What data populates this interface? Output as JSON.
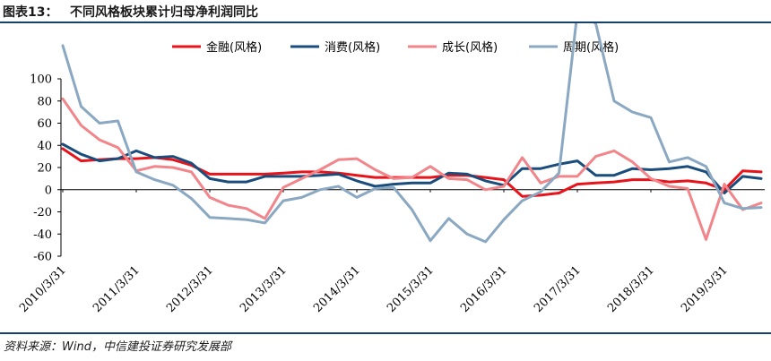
{
  "figure": {
    "number": "图表13：",
    "title": "不同风格板块累计归母净利润同比",
    "source": "资料来源：Wind，中信建投证券研究发展部"
  },
  "chart_data": {
    "type": "line",
    "title": "不同风格板块累计归母净利润同比",
    "ylabel": "",
    "xlabel": "",
    "ylim": [
      -60,
      100
    ],
    "yticks": [
      -60,
      -40,
      -20,
      0,
      20,
      40,
      60,
      80,
      100
    ],
    "grid": false,
    "legend_position": "top",
    "x": [
      "2010/3/31",
      "2010/6/30",
      "2010/9/30",
      "2010/12/31",
      "2011/3/31",
      "2011/6/30",
      "2011/9/30",
      "2011/12/31",
      "2012/3/31",
      "2012/6/30",
      "2012/9/30",
      "2012/12/31",
      "2013/3/31",
      "2013/6/30",
      "2013/9/30",
      "2013/12/31",
      "2014/3/31",
      "2014/6/30",
      "2014/9/30",
      "2014/12/31",
      "2015/3/31",
      "2015/6/30",
      "2015/9/30",
      "2015/12/31",
      "2016/3/31",
      "2016/6/30",
      "2016/9/30",
      "2016/12/31",
      "2017/3/31",
      "2017/6/30",
      "2017/9/30",
      "2017/12/31",
      "2018/3/31",
      "2018/6/30",
      "2018/9/30",
      "2018/12/31",
      "2019/3/31",
      "2019/6/30",
      "2019/9/30"
    ],
    "xtick_labels": [
      "2010/3/31",
      "2011/3/31",
      "2012/3/31",
      "2013/3/31",
      "2014/3/31",
      "2015/3/31",
      "2016/3/31",
      "2017/3/31",
      "2018/3/31",
      "2019/3/31"
    ],
    "series": [
      {
        "name": "金融(风格)",
        "color": "#e8141b",
        "values": [
          37,
          26,
          27,
          28,
          28,
          29,
          27,
          22,
          14,
          14,
          14,
          14,
          15,
          16,
          16,
          15,
          13,
          11,
          11,
          11,
          11,
          13,
          13,
          11,
          9,
          -6,
          -5,
          -3,
          5,
          6,
          7,
          9,
          9,
          7,
          8,
          6,
          0,
          17,
          16
        ]
      },
      {
        "name": "消费(风格)",
        "color": "#1a4d7c",
        "values": [
          41,
          32,
          26,
          28,
          35,
          29,
          30,
          24,
          10,
          7,
          7,
          12,
          12,
          12,
          13,
          14,
          8,
          3,
          5,
          6,
          6,
          15,
          14,
          8,
          4,
          19,
          19,
          23,
          26,
          13,
          13,
          19,
          18,
          19,
          21,
          16,
          -3,
          12,
          10
        ]
      },
      {
        "name": "成长(风格)",
        "color": "#f2858a",
        "values": [
          82,
          58,
          45,
          38,
          17,
          21,
          20,
          16,
          -7,
          -14,
          -17,
          -26,
          2,
          10,
          18,
          27,
          28,
          18,
          10,
          11,
          21,
          10,
          9,
          0,
          3,
          29,
          6,
          12,
          12,
          30,
          35,
          25,
          10,
          3,
          1,
          -45,
          5,
          -18,
          -12
        ]
      },
      {
        "name": "周期(风格)",
        "color": "#8aa8c2",
        "values": [
          130,
          75,
          60,
          62,
          16,
          9,
          4,
          -8,
          -25,
          -26,
          -27,
          -30,
          -10,
          -7,
          0,
          3,
          -7,
          1,
          2,
          -18,
          -46,
          -26,
          -40,
          -47,
          -27,
          -10,
          -2,
          15,
          160,
          150,
          80,
          70,
          65,
          25,
          29,
          21,
          -12,
          -17,
          -16
        ]
      }
    ]
  }
}
